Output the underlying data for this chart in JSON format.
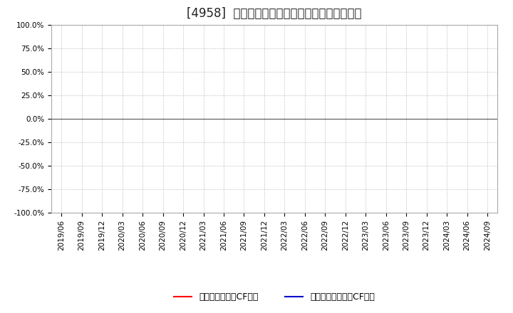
{
  "title": "[4958]  有利子負債キャッシュフロー比率の推移",
  "ylim": [
    -1.0,
    1.0
  ],
  "yticks": [
    -1.0,
    -0.75,
    -0.5,
    -0.25,
    0.0,
    0.25,
    0.5,
    0.75,
    1.0
  ],
  "ytick_labels": [
    "-100.0%",
    "-75.0%",
    "-50.0%",
    "-25.0%",
    "0.0%",
    "25.0%",
    "50.0%",
    "75.0%",
    "100.0%"
  ],
  "xtick_labels": [
    "2019/06",
    "2019/09",
    "2019/12",
    "2020/03",
    "2020/06",
    "2020/09",
    "2020/12",
    "2021/03",
    "2021/06",
    "2021/09",
    "2021/12",
    "2022/03",
    "2022/06",
    "2022/09",
    "2022/12",
    "2023/03",
    "2023/06",
    "2023/09",
    "2023/12",
    "2024/03",
    "2024/06",
    "2024/09"
  ],
  "legend_label1": "有利子負債営業CF比率",
  "legend_label2": "有利子負債フリーCF比率",
  "line1_color": "#ff0000",
  "line2_color": "#0000cc",
  "background_color": "#ffffff",
  "plot_bg_color": "#ffffff",
  "grid_color": "#aaaaaa",
  "title_fontsize": 12,
  "tick_fontsize": 7.5,
  "legend_fontsize": 9
}
